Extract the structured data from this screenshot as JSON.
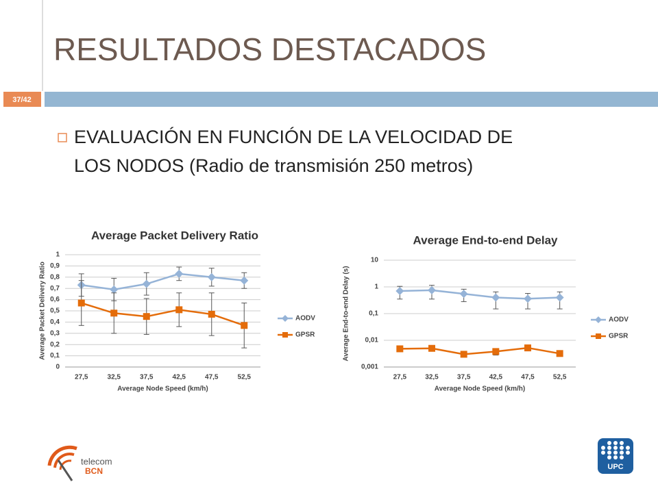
{
  "slide": {
    "title": "RESULTADOS DESTACADOS",
    "page": "37/42",
    "bullet": {
      "lines": [
        "EVALUACIÓN EN FUNCIÓN DE LA VELOCIDAD DE",
        "LOS NODOS (Radio de transmisión 250 metros)"
      ]
    },
    "logo_left": {
      "line1": "telecom",
      "line2": "BCN"
    },
    "logo_right": "UPC"
  },
  "chart_data": [
    {
      "type": "line",
      "title": "Average Packet Delivery Ratio",
      "x_label": "Average Node Speed (km/h)",
      "y_label": "Average Packet Delivery Ratio",
      "categories": [
        "27,5",
        "32,5",
        "37,5",
        "42,5",
        "47,5",
        "52,5"
      ],
      "series": [
        {
          "name": "AODV",
          "color": "#95b3d7",
          "marker": "diamond",
          "values": [
            0.73,
            0.69,
            0.74,
            0.83,
            0.8,
            0.77
          ],
          "errors": [
            0.1,
            0.1,
            0.1,
            0.06,
            0.08,
            0.07
          ]
        },
        {
          "name": "GPSR",
          "color": "#e46c0a",
          "marker": "square",
          "values": [
            0.57,
            0.48,
            0.45,
            0.51,
            0.47,
            0.37
          ],
          "errors": [
            0.2,
            0.18,
            0.16,
            0.15,
            0.19,
            0.2
          ]
        }
      ],
      "ylim": [
        0,
        1
      ],
      "yticks": [
        0,
        {
          "value": 0.1,
          "label": "0,1"
        },
        {
          "value": 0.2,
          "label": "0,2"
        },
        {
          "value": 0.3,
          "label": "0,3"
        },
        {
          "value": 0.4,
          "label": "0,4"
        },
        {
          "value": 0.5,
          "label": "0,5"
        },
        {
          "value": 0.6,
          "label": "0,6"
        },
        {
          "value": 0.7,
          "label": "0,7"
        },
        {
          "value": 0.8,
          "label": "0,8"
        },
        {
          "value": 0.9,
          "label": "0,9"
        },
        1
      ],
      "log_scale": false,
      "grid": true,
      "legend": "right"
    },
    {
      "type": "line",
      "title": "Average End-to-end Delay",
      "x_label": "Average Node Speed (km/h)",
      "y_label": "Average End-to-end Delay (s)",
      "categories": [
        "27,5",
        "32,5",
        "37,5",
        "42,5",
        "47,5",
        "52,5"
      ],
      "series": [
        {
          "name": "AODV",
          "color": "#95b3d7",
          "marker": "diamond",
          "values": [
            0.7,
            0.75,
            0.55,
            0.4,
            0.36,
            0.4
          ],
          "errors": [
            0.35,
            0.4,
            0.27,
            0.25,
            0.21,
            0.25
          ]
        },
        {
          "name": "GPSR",
          "color": "#e46c0a",
          "marker": "square",
          "values": [
            0.0048,
            0.005,
            0.003,
            0.0038,
            0.0052,
            0.0032
          ],
          "errors": [
            0.001,
            0.001,
            0.0004,
            0.001,
            0.0012,
            0.0006
          ]
        }
      ],
      "ylim": [
        0.001,
        10
      ],
      "yticks": [
        {
          "value": 0.001,
          "label": "0,001"
        },
        {
          "value": 0.01,
          "label": "0,01"
        },
        {
          "value": 0.1,
          "label": "0,1"
        },
        1,
        10
      ],
      "log_scale": true,
      "grid": true,
      "legend": "right"
    }
  ]
}
